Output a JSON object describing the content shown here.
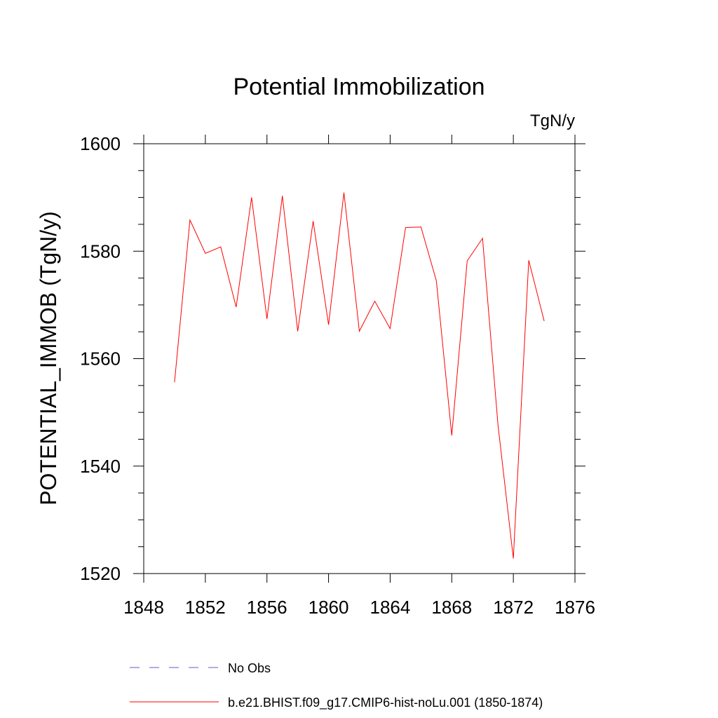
{
  "chart_data": {
    "type": "line",
    "title": "Potential Immobilization",
    "units_label": "TgN/y",
    "ylabel": "POTENTIAL_IMMOB  (TgN/y)",
    "xlabel": "",
    "xlim": [
      1848,
      1876
    ],
    "ylim": [
      1520,
      1600
    ],
    "x_ticks": [
      1848,
      1852,
      1856,
      1860,
      1864,
      1868,
      1872,
      1876
    ],
    "y_ticks": [
      1520,
      1540,
      1560,
      1580,
      1600
    ],
    "grid": false,
    "legend_placement": "bottom",
    "series": [
      {
        "name": "No Obs",
        "color": "#6a5acd",
        "style": "dashed",
        "x": [],
        "y": []
      },
      {
        "name": "b.e21.BHIST.f09_g17.CMIP6-hist-noLu.001 (1850-1874)",
        "color": "#ff0000",
        "style": "solid",
        "x": [
          1850,
          1851,
          1852,
          1853,
          1854,
          1855,
          1856,
          1857,
          1858,
          1859,
          1860,
          1861,
          1862,
          1863,
          1864,
          1865,
          1866,
          1867,
          1868,
          1869,
          1870,
          1871,
          1872,
          1873,
          1874
        ],
        "y": [
          1555.6,
          1585.8,
          1579.6,
          1580.8,
          1569.6,
          1590.0,
          1567.4,
          1590.3,
          1565.1,
          1585.6,
          1566.3,
          1590.9,
          1565.1,
          1570.7,
          1565.6,
          1584.4,
          1584.5,
          1574.5,
          1545.7,
          1578.2,
          1582.4,
          1547.7,
          1522.8,
          1578.3,
          1567.0
        ]
      }
    ]
  }
}
